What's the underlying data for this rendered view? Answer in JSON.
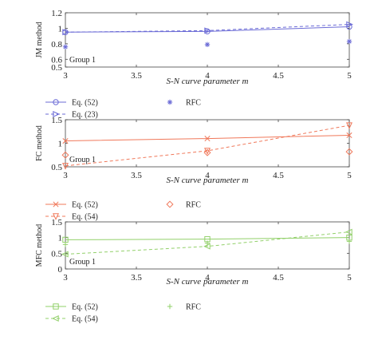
{
  "chart_data": [
    {
      "type": "line",
      "ylabel": "JM method",
      "xlabel": "S-N curve parameter m",
      "group_label": "Group 1",
      "xlim": [
        3,
        5
      ],
      "ylim": [
        0.5,
        1.2
      ],
      "xticks": [
        3,
        3.5,
        4,
        4.5,
        5
      ],
      "xtick_labels": [
        "3",
        "3.5",
        "4",
        "4.5",
        "5"
      ],
      "yticks": [
        0.5,
        0.6,
        0.8,
        1,
        1.2
      ],
      "ytick_labels": [
        "0.5",
        "0.6",
        "0.8",
        "1",
        "1.2"
      ],
      "color": "#6b6bd6",
      "x": [
        3,
        4,
        5
      ],
      "series": [
        {
          "name": "Eq. (52)",
          "style": "solid",
          "marker": "circle",
          "values": [
            0.95,
            0.96,
            1.02
          ]
        },
        {
          "name": "Eq. (23)",
          "style": "dashed",
          "marker": "triangle-right",
          "values": [
            0.95,
            0.97,
            1.05
          ]
        },
        {
          "name": "RFC",
          "style": "none",
          "marker": "asterisk",
          "values": [
            0.76,
            0.79,
            0.83
          ]
        }
      ]
    },
    {
      "type": "line",
      "ylabel": "FC method",
      "xlabel": "S-N curve parameter m",
      "group_label": "Group 1",
      "xlim": [
        3,
        5
      ],
      "ylim": [
        0.5,
        1.5
      ],
      "xticks": [
        3,
        3.5,
        4,
        4.5,
        5
      ],
      "xtick_labels": [
        "3",
        "3.5",
        "4",
        "4.5",
        "5"
      ],
      "yticks": [
        0.5,
        1,
        1.5
      ],
      "ytick_labels": [
        "0.5",
        "1",
        "1.5"
      ],
      "color": "#f0785a",
      "x": [
        3,
        4,
        5
      ],
      "series": [
        {
          "name": "Eq. (52)",
          "style": "solid",
          "marker": "x",
          "values": [
            1.05,
            1.1,
            1.17
          ]
        },
        {
          "name": "Eq. (54)",
          "style": "dashed",
          "marker": "triangle-down",
          "values": [
            0.52,
            0.84,
            1.38
          ]
        },
        {
          "name": "RFC",
          "style": "none",
          "marker": "diamond",
          "values": [
            0.75,
            0.8,
            0.82
          ]
        }
      ]
    },
    {
      "type": "line",
      "ylabel": "MFC method",
      "xlabel": "S-N curve parameter m",
      "group_label": "Group 1",
      "xlim": [
        3,
        5
      ],
      "ylim": [
        0,
        1.5
      ],
      "xticks": [
        3,
        3.5,
        4,
        4.5,
        5
      ],
      "xtick_labels": [
        "3",
        "3.5",
        "4",
        "4.5",
        "5"
      ],
      "yticks": [
        0,
        0.5,
        1,
        1.5
      ],
      "ytick_labels": [
        "0",
        "0.5",
        "1",
        "1.5"
      ],
      "color": "#92d06a",
      "x": [
        3,
        4,
        5
      ],
      "series": [
        {
          "name": "Eq. (52)",
          "style": "solid",
          "marker": "square",
          "values": [
            0.93,
            0.95,
            1.0
          ]
        },
        {
          "name": "Eq. (54)",
          "style": "dashed",
          "marker": "triangle-left",
          "values": [
            0.47,
            0.72,
            1.18
          ]
        },
        {
          "name": "RFC",
          "style": "none",
          "marker": "plus",
          "values": [
            0.78,
            0.82,
            0.88
          ]
        }
      ]
    }
  ]
}
